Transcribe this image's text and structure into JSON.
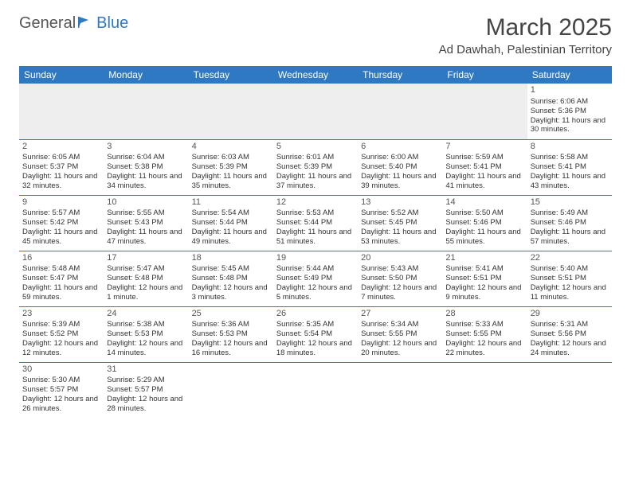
{
  "logo": {
    "general": "General",
    "blue": "Blue"
  },
  "title": {
    "month": "March 2025",
    "location": "Ad Dawhah, Palestinian Territory"
  },
  "colors": {
    "header_bg": "#2f78c2",
    "header_text": "#ffffff",
    "border": "#2f78c2",
    "blank_bg": "#eeeeee"
  },
  "weekdays": [
    "Sunday",
    "Monday",
    "Tuesday",
    "Wednesday",
    "Thursday",
    "Friday",
    "Saturday"
  ],
  "weeks": [
    [
      null,
      null,
      null,
      null,
      null,
      null,
      {
        "n": "1",
        "sr": "Sunrise: 6:06 AM",
        "ss": "Sunset: 5:36 PM",
        "dl": "Daylight: 11 hours and 30 minutes."
      }
    ],
    [
      {
        "n": "2",
        "sr": "Sunrise: 6:05 AM",
        "ss": "Sunset: 5:37 PM",
        "dl": "Daylight: 11 hours and 32 minutes."
      },
      {
        "n": "3",
        "sr": "Sunrise: 6:04 AM",
        "ss": "Sunset: 5:38 PM",
        "dl": "Daylight: 11 hours and 34 minutes."
      },
      {
        "n": "4",
        "sr": "Sunrise: 6:03 AM",
        "ss": "Sunset: 5:39 PM",
        "dl": "Daylight: 11 hours and 35 minutes."
      },
      {
        "n": "5",
        "sr": "Sunrise: 6:01 AM",
        "ss": "Sunset: 5:39 PM",
        "dl": "Daylight: 11 hours and 37 minutes."
      },
      {
        "n": "6",
        "sr": "Sunrise: 6:00 AM",
        "ss": "Sunset: 5:40 PM",
        "dl": "Daylight: 11 hours and 39 minutes."
      },
      {
        "n": "7",
        "sr": "Sunrise: 5:59 AM",
        "ss": "Sunset: 5:41 PM",
        "dl": "Daylight: 11 hours and 41 minutes."
      },
      {
        "n": "8",
        "sr": "Sunrise: 5:58 AM",
        "ss": "Sunset: 5:41 PM",
        "dl": "Daylight: 11 hours and 43 minutes."
      }
    ],
    [
      {
        "n": "9",
        "sr": "Sunrise: 5:57 AM",
        "ss": "Sunset: 5:42 PM",
        "dl": "Daylight: 11 hours and 45 minutes."
      },
      {
        "n": "10",
        "sr": "Sunrise: 5:55 AM",
        "ss": "Sunset: 5:43 PM",
        "dl": "Daylight: 11 hours and 47 minutes."
      },
      {
        "n": "11",
        "sr": "Sunrise: 5:54 AM",
        "ss": "Sunset: 5:44 PM",
        "dl": "Daylight: 11 hours and 49 minutes."
      },
      {
        "n": "12",
        "sr": "Sunrise: 5:53 AM",
        "ss": "Sunset: 5:44 PM",
        "dl": "Daylight: 11 hours and 51 minutes."
      },
      {
        "n": "13",
        "sr": "Sunrise: 5:52 AM",
        "ss": "Sunset: 5:45 PM",
        "dl": "Daylight: 11 hours and 53 minutes."
      },
      {
        "n": "14",
        "sr": "Sunrise: 5:50 AM",
        "ss": "Sunset: 5:46 PM",
        "dl": "Daylight: 11 hours and 55 minutes."
      },
      {
        "n": "15",
        "sr": "Sunrise: 5:49 AM",
        "ss": "Sunset: 5:46 PM",
        "dl": "Daylight: 11 hours and 57 minutes."
      }
    ],
    [
      {
        "n": "16",
        "sr": "Sunrise: 5:48 AM",
        "ss": "Sunset: 5:47 PM",
        "dl": "Daylight: 11 hours and 59 minutes."
      },
      {
        "n": "17",
        "sr": "Sunrise: 5:47 AM",
        "ss": "Sunset: 5:48 PM",
        "dl": "Daylight: 12 hours and 1 minute."
      },
      {
        "n": "18",
        "sr": "Sunrise: 5:45 AM",
        "ss": "Sunset: 5:48 PM",
        "dl": "Daylight: 12 hours and 3 minutes."
      },
      {
        "n": "19",
        "sr": "Sunrise: 5:44 AM",
        "ss": "Sunset: 5:49 PM",
        "dl": "Daylight: 12 hours and 5 minutes."
      },
      {
        "n": "20",
        "sr": "Sunrise: 5:43 AM",
        "ss": "Sunset: 5:50 PM",
        "dl": "Daylight: 12 hours and 7 minutes."
      },
      {
        "n": "21",
        "sr": "Sunrise: 5:41 AM",
        "ss": "Sunset: 5:51 PM",
        "dl": "Daylight: 12 hours and 9 minutes."
      },
      {
        "n": "22",
        "sr": "Sunrise: 5:40 AM",
        "ss": "Sunset: 5:51 PM",
        "dl": "Daylight: 12 hours and 11 minutes."
      }
    ],
    [
      {
        "n": "23",
        "sr": "Sunrise: 5:39 AM",
        "ss": "Sunset: 5:52 PM",
        "dl": "Daylight: 12 hours and 12 minutes."
      },
      {
        "n": "24",
        "sr": "Sunrise: 5:38 AM",
        "ss": "Sunset: 5:53 PM",
        "dl": "Daylight: 12 hours and 14 minutes."
      },
      {
        "n": "25",
        "sr": "Sunrise: 5:36 AM",
        "ss": "Sunset: 5:53 PM",
        "dl": "Daylight: 12 hours and 16 minutes."
      },
      {
        "n": "26",
        "sr": "Sunrise: 5:35 AM",
        "ss": "Sunset: 5:54 PM",
        "dl": "Daylight: 12 hours and 18 minutes."
      },
      {
        "n": "27",
        "sr": "Sunrise: 5:34 AM",
        "ss": "Sunset: 5:55 PM",
        "dl": "Daylight: 12 hours and 20 minutes."
      },
      {
        "n": "28",
        "sr": "Sunrise: 5:33 AM",
        "ss": "Sunset: 5:55 PM",
        "dl": "Daylight: 12 hours and 22 minutes."
      },
      {
        "n": "29",
        "sr": "Sunrise: 5:31 AM",
        "ss": "Sunset: 5:56 PM",
        "dl": "Daylight: 12 hours and 24 minutes."
      }
    ],
    [
      {
        "n": "30",
        "sr": "Sunrise: 5:30 AM",
        "ss": "Sunset: 5:57 PM",
        "dl": "Daylight: 12 hours and 26 minutes."
      },
      {
        "n": "31",
        "sr": "Sunrise: 5:29 AM",
        "ss": "Sunset: 5:57 PM",
        "dl": "Daylight: 12 hours and 28 minutes."
      },
      null,
      null,
      null,
      null,
      null
    ]
  ]
}
